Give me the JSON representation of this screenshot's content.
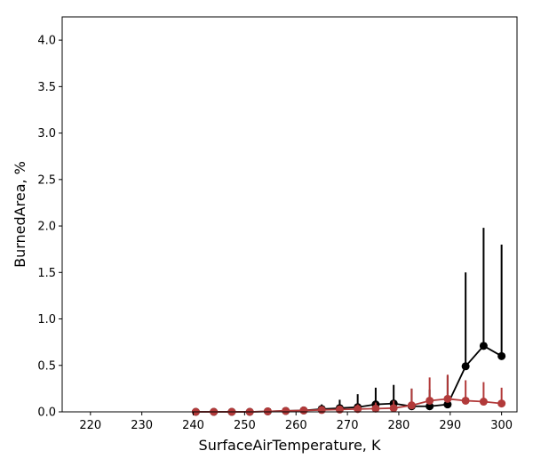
{
  "chart_data": {
    "type": "line",
    "title": "",
    "xlabel": "SurfaceAirTemperature,  K",
    "ylabel": "BurnedArea,  %",
    "xlim": [
      214.5,
      303
    ],
    "ylim": [
      0,
      4.25
    ],
    "xticks": [
      220,
      230,
      240,
      250,
      260,
      270,
      280,
      290,
      300
    ],
    "yticks": [
      0.0,
      0.5,
      1.0,
      1.5,
      2.0,
      2.5,
      3.0,
      3.5,
      4.0
    ],
    "xtick_labels": [
      "220",
      "230",
      "240",
      "250",
      "260",
      "270",
      "280",
      "290",
      "300"
    ],
    "ytick_labels": [
      "0.0",
      "0.5",
      "1.0",
      "1.5",
      "2.0",
      "2.5",
      "3.0",
      "3.5",
      "4.0"
    ],
    "grid": false,
    "series": [
      {
        "color": "#000000",
        "x": [
          240.5,
          244,
          247.5,
          251,
          254.5,
          258,
          261.5,
          265,
          268.5,
          272,
          275.5,
          279,
          282.5,
          286,
          289.5,
          293,
          296.5,
          300
        ],
        "y": [
          0.0,
          0.0,
          0.0,
          0.0,
          0.005,
          0.01,
          0.015,
          0.03,
          0.04,
          0.05,
          0.08,
          0.09,
          0.06,
          0.06,
          0.08,
          0.49,
          0.71,
          0.6
        ],
        "err_hi": [
          0.005,
          0.005,
          0.005,
          0.005,
          0.02,
          0.03,
          0.05,
          0.08,
          0.13,
          0.19,
          0.26,
          0.29,
          0.25,
          0.24,
          0.39,
          1.5,
          1.98,
          1.8
        ]
      },
      {
        "color": "#b23a3a",
        "x": [
          240.5,
          244,
          247.5,
          251,
          254.5,
          258,
          261.5,
          265,
          268.5,
          272,
          275.5,
          279,
          282.5,
          286,
          289.5,
          293,
          296.5,
          300
        ],
        "y": [
          0.0,
          0.0,
          0.0,
          0.0,
          0.005,
          0.01,
          0.015,
          0.02,
          0.025,
          0.03,
          0.035,
          0.04,
          0.07,
          0.12,
          0.14,
          0.12,
          0.11,
          0.09
        ],
        "err_hi": [
          0.005,
          0.005,
          0.005,
          0.005,
          0.01,
          0.02,
          0.03,
          0.04,
          0.06,
          0.08,
          0.1,
          0.12,
          0.25,
          0.37,
          0.4,
          0.34,
          0.32,
          0.26
        ]
      }
    ]
  }
}
